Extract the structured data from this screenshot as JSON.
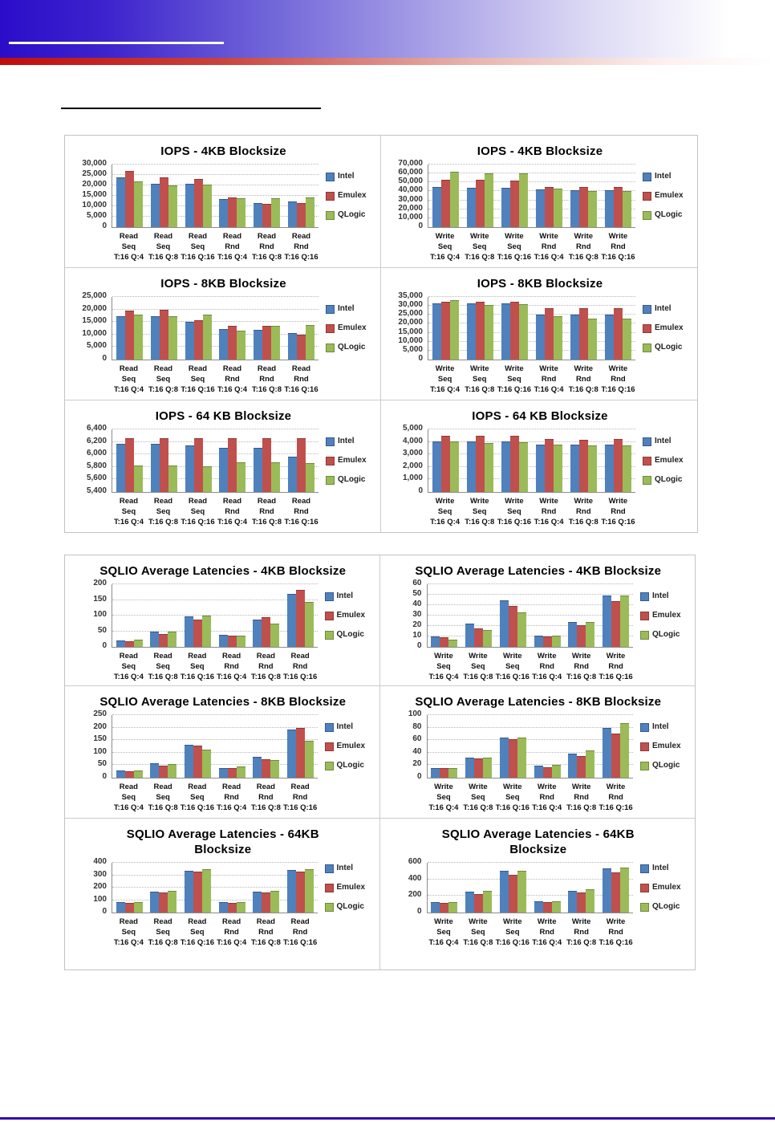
{
  "header": {
    "blue_color": "#2b0dc9",
    "red_color": "#c00c0c",
    "footer_line_color": "#2f0ba8"
  },
  "series_colors": {
    "Intel": "#4F81BD",
    "Emulex": "#C0504D",
    "QLogic": "#9BBB59"
  },
  "series_border_colors": {
    "Intel": "#36598c",
    "Emulex": "#8e3936",
    "QLogic": "#6f8a3c"
  },
  "legend_labels": [
    "Intel",
    "Emulex",
    "QLogic"
  ],
  "read_categories": [
    "Read Seq\nT:16 Q:4",
    "Read Seq\nT:16 Q:8",
    "Read Seq\nT:16 Q:16",
    "Read Rnd\nT:16 Q:4",
    "Read Rnd\nT:16 Q:8",
    "Read Rnd\nT:16 Q:16"
  ],
  "write_categories": [
    "Write Seq\nT:16 Q:4",
    "Write Seq\nT:16 Q:8",
    "Write Seq\nT:16 Q:16",
    "Write Rnd\nT:16 Q:4",
    "Write Rnd\nT:16 Q:8",
    "Write Rnd\nT:16 Q:16"
  ],
  "chart_data": [
    {
      "id": "iops-4kb-read",
      "group": 1,
      "type": "bar",
      "title_lines": [
        "IOPS - 4KB Blocksize"
      ],
      "ylim": [
        0,
        30000
      ],
      "ystep": 5000,
      "grid": true,
      "legend_position": "right",
      "categories": [
        "Read Seq\nT:16 Q:4",
        "Read Seq\nT:16 Q:8",
        "Read Seq\nT:16 Q:16",
        "Read Rnd\nT:16 Q:4",
        "Read Rnd\nT:16 Q:8",
        "Read Rnd\nT:16 Q:16"
      ],
      "series": [
        {
          "name": "Intel",
          "values": [
            24000,
            20800,
            20700,
            13400,
            11700,
            12300
          ]
        },
        {
          "name": "Emulex",
          "values": [
            26900,
            23700,
            23200,
            14200,
            11100,
            11400
          ]
        },
        {
          "name": "QLogic",
          "values": [
            22000,
            19900,
            20400,
            13900,
            13900,
            14100
          ]
        }
      ]
    },
    {
      "id": "iops-4kb-write",
      "group": 1,
      "type": "bar",
      "title_lines": [
        "IOPS - 4KB Blocksize"
      ],
      "ylim": [
        0,
        70000
      ],
      "ystep": 10000,
      "grid": true,
      "legend_position": "right",
      "categories": [
        "Write Seq\nT:16 Q:4",
        "Write Seq\nT:16 Q:8",
        "Write Seq\nT:16 Q:16",
        "Write Rnd\nT:16 Q:4",
        "Write Rnd\nT:16 Q:8",
        "Write Rnd\nT:16 Q:16"
      ],
      "series": [
        {
          "name": "Intel",
          "values": [
            45200,
            44400,
            44300,
            41800,
            40900,
            40900
          ]
        },
        {
          "name": "Emulex",
          "values": [
            52800,
            52800,
            51900,
            45300,
            45300,
            45300
          ]
        },
        {
          "name": "QLogic",
          "values": [
            61800,
            60300,
            60100,
            42900,
            40400,
            40400
          ]
        }
      ]
    },
    {
      "id": "iops-8kb-read",
      "group": 1,
      "type": "bar",
      "title_lines": [
        "IOPS - 8KB Blocksize"
      ],
      "ylim": [
        0,
        25000
      ],
      "ystep": 5000,
      "grid": true,
      "legend_position": "right",
      "categories": [
        "Read Seq\nT:16 Q:4",
        "Read Seq\nT:16 Q:8",
        "Read Seq\nT:16 Q:16",
        "Read Rnd\nT:16 Q:4",
        "Read Rnd\nT:16 Q:8",
        "Read Rnd\nT:16 Q:16"
      ],
      "series": [
        {
          "name": "Intel",
          "values": [
            17400,
            17200,
            15200,
            12200,
            11800,
            10500
          ]
        },
        {
          "name": "Emulex",
          "values": [
            19700,
            19900,
            15800,
            13400,
            13400,
            10100
          ]
        },
        {
          "name": "QLogic",
          "values": [
            18100,
            17400,
            17800,
            11400,
            13600,
            13800
          ]
        }
      ]
    },
    {
      "id": "iops-8kb-write",
      "group": 1,
      "type": "bar",
      "title_lines": [
        "IOPS - 8KB Blocksize"
      ],
      "ylim": [
        0,
        35000
      ],
      "ystep": 5000,
      "grid": true,
      "legend_position": "right",
      "categories": [
        "Write Seq\nT:16 Q:4",
        "Write Seq\nT:16 Q:8",
        "Write Seq\nT:16 Q:16",
        "Write Rnd\nT:16 Q:4",
        "Write Rnd\nT:16 Q:8",
        "Write Rnd\nT:16 Q:16"
      ],
      "series": [
        {
          "name": "Intel",
          "values": [
            31200,
            31200,
            31200,
            25200,
            25200,
            25200
          ]
        },
        {
          "name": "Emulex",
          "values": [
            32100,
            32400,
            32400,
            28800,
            28800,
            28800
          ]
        },
        {
          "name": "QLogic",
          "values": [
            33200,
            30700,
            31100,
            24200,
            22800,
            22800
          ]
        }
      ]
    },
    {
      "id": "iops-64kb-read",
      "group": 1,
      "type": "bar",
      "title_lines": [
        "IOPS - 64 KB Blocksize"
      ],
      "ylim": [
        5400,
        6400
      ],
      "ystep": 200,
      "grid": true,
      "legend_position": "right",
      "categories": [
        "Read Seq\nT:16 Q:4",
        "Read Seq\nT:16 Q:8",
        "Read Seq\nT:16 Q:16",
        "Read Rnd\nT:16 Q:4",
        "Read Rnd\nT:16 Q:8",
        "Read Rnd\nT:16 Q:16"
      ],
      "series": [
        {
          "name": "Intel",
          "values": [
            6170,
            6170,
            6150,
            6100,
            6100,
            5960
          ]
        },
        {
          "name": "Emulex",
          "values": [
            6255,
            6255,
            6255,
            6255,
            6255,
            6255
          ]
        },
        {
          "name": "QLogic",
          "values": [
            5825,
            5820,
            5810,
            5875,
            5875,
            5860
          ]
        }
      ]
    },
    {
      "id": "iops-64kb-write",
      "group": 1,
      "type": "bar",
      "title_lines": [
        "IOPS - 64 KB Blocksize"
      ],
      "ylim": [
        0,
        5000
      ],
      "ystep": 1000,
      "grid": true,
      "legend_position": "right",
      "categories": [
        "Write Seq\nT:16 Q:4",
        "Write Seq\nT:16 Q:8",
        "Write Seq\nT:16 Q:16",
        "Write Rnd\nT:16 Q:4",
        "Write Rnd\nT:16 Q:8",
        "Write Rnd\nT:16 Q:16"
      ],
      "series": [
        {
          "name": "Intel",
          "values": [
            4070,
            4070,
            4070,
            3800,
            3800,
            3800
          ]
        },
        {
          "name": "Emulex",
          "values": [
            4520,
            4480,
            4520,
            4220,
            4180,
            4220
          ]
        },
        {
          "name": "QLogic",
          "values": [
            4030,
            3880,
            3980,
            3800,
            3730,
            3730
          ]
        }
      ]
    },
    {
      "id": "latency-4kb-read",
      "group": 2,
      "type": "bar",
      "title_lines": [
        "SQLIO Average Latencies - 4KB Blocksize"
      ],
      "ylim": [
        0,
        200
      ],
      "ystep": 50,
      "grid": true,
      "legend_position": "right",
      "categories": [
        "Read Seq\nT:16 Q:4",
        "Read Seq\nT:16 Q:8",
        "Read Seq\nT:16 Q:16",
        "Read Rnd\nT:16 Q:4",
        "Read Rnd\nT:16 Q:8",
        "Read Rnd\nT:16 Q:16"
      ],
      "series": [
        {
          "name": "Intel",
          "values": [
            21,
            48,
            98,
            38,
            88,
            168
          ]
        },
        {
          "name": "Emulex",
          "values": [
            18,
            42,
            88,
            36,
            94,
            182
          ]
        },
        {
          "name": "QLogic",
          "values": [
            23,
            50,
            100,
            36,
            75,
            144
          ]
        }
      ]
    },
    {
      "id": "latency-4kb-write",
      "group": 2,
      "type": "bar",
      "title_lines": [
        "SQLIO Average Latencies - 4KB Blocksize"
      ],
      "ylim": [
        0,
        60
      ],
      "ystep": 10,
      "grid": true,
      "legend_position": "right",
      "categories": [
        "Write Seq\nT:16 Q:4",
        "Write Seq\nT:16 Q:8",
        "Write Seq\nT:16 Q:16",
        "Write Rnd\nT:16 Q:4",
        "Write Rnd\nT:16 Q:8",
        "Write Rnd\nT:16 Q:16"
      ],
      "series": [
        {
          "name": "Intel",
          "values": [
            10,
            22,
            45,
            11,
            24,
            49
          ]
        },
        {
          "name": "Emulex",
          "values": [
            9,
            18,
            39,
            10,
            21,
            44
          ]
        },
        {
          "name": "QLogic",
          "values": [
            7,
            16,
            33,
            11,
            24,
            49
          ]
        }
      ]
    },
    {
      "id": "latency-8kb-read",
      "group": 2,
      "type": "bar",
      "title_lines": [
        "SQLIO Average Latencies - 8KB Blocksize"
      ],
      "ylim": [
        0,
        250
      ],
      "ystep": 50,
      "grid": true,
      "legend_position": "right",
      "categories": [
        "Read Seq\nT:16 Q:4",
        "Read Seq\nT:16 Q:8",
        "Read Seq\nT:16 Q:16",
        "Read Rnd\nT:16 Q:4",
        "Read Rnd\nT:16 Q:8",
        "Read Rnd\nT:16 Q:16"
      ],
      "series": [
        {
          "name": "Intel",
          "values": [
            28,
            57,
            133,
            40,
            84,
            192
          ]
        },
        {
          "name": "Emulex",
          "values": [
            25,
            48,
            127,
            37,
            75,
            200
          ]
        },
        {
          "name": "QLogic",
          "values": [
            28,
            55,
            113,
            44,
            72,
            146
          ]
        }
      ]
    },
    {
      "id": "latency-8kb-write",
      "group": 2,
      "type": "bar",
      "title_lines": [
        "SQLIO Average Latencies - 8KB Blocksize"
      ],
      "ylim": [
        0,
        100
      ],
      "ystep": 20,
      "grid": true,
      "legend_position": "right",
      "categories": [
        "Write Seq\nT:16 Q:4",
        "Write Seq\nT:16 Q:8",
        "Write Seq\nT:16 Q:16",
        "Write Rnd\nT:16 Q:4",
        "Write Rnd\nT:16 Q:8",
        "Write Rnd\nT:16 Q:16"
      ],
      "series": [
        {
          "name": "Intel",
          "values": [
            16,
            32,
            64,
            19,
            39,
            80
          ]
        },
        {
          "name": "Emulex",
          "values": [
            15,
            31,
            61,
            17,
            35,
            71
          ]
        },
        {
          "name": "QLogic",
          "values": [
            15,
            32,
            64,
            20,
            44,
            87
          ]
        }
      ]
    },
    {
      "id": "latency-64kb-read",
      "group": 2,
      "type": "bar",
      "title_lines": [
        "SQLIO Average Latencies - 64KB",
        "Blocksize"
      ],
      "ylim": [
        0,
        400
      ],
      "ystep": 100,
      "grid": true,
      "legend_position": "right",
      "categories": [
        "Read Seq\nT:16 Q:4",
        "Read Seq\nT:16 Q:8",
        "Read Seq\nT:16 Q:16",
        "Read Rnd\nT:16 Q:4",
        "Read Rnd\nT:16 Q:8",
        "Read Rnd\nT:16 Q:16"
      ],
      "series": [
        {
          "name": "Intel",
          "values": [
            83,
            167,
            333,
            83,
            167,
            343
          ]
        },
        {
          "name": "Emulex",
          "values": [
            80,
            160,
            327,
            80,
            160,
            327
          ]
        },
        {
          "name": "QLogic",
          "values": [
            86,
            172,
            347,
            86,
            172,
            347
          ]
        }
      ]
    },
    {
      "id": "latency-64kb-write",
      "group": 2,
      "type": "bar",
      "title_lines": [
        "SQLIO Average Latencies - 64KB",
        "Blocksize"
      ],
      "ylim": [
        0,
        600
      ],
      "ystep": 200,
      "grid": true,
      "legend_position": "right",
      "categories": [
        "Write Seq\nT:16 Q:4",
        "Write Seq\nT:16 Q:8",
        "Write Seq\nT:16 Q:16",
        "Write Rnd\nT:16 Q:4",
        "Write Rnd\nT:16 Q:8",
        "Write Rnd\nT:16 Q:16"
      ],
      "series": [
        {
          "name": "Intel",
          "values": [
            128,
            252,
            500,
            133,
            265,
            530
          ]
        },
        {
          "name": "Emulex",
          "values": [
            118,
            227,
            455,
            125,
            240,
            485
          ]
        },
        {
          "name": "QLogic",
          "values": [
            125,
            260,
            505,
            133,
            277,
            545
          ]
        }
      ]
    }
  ]
}
